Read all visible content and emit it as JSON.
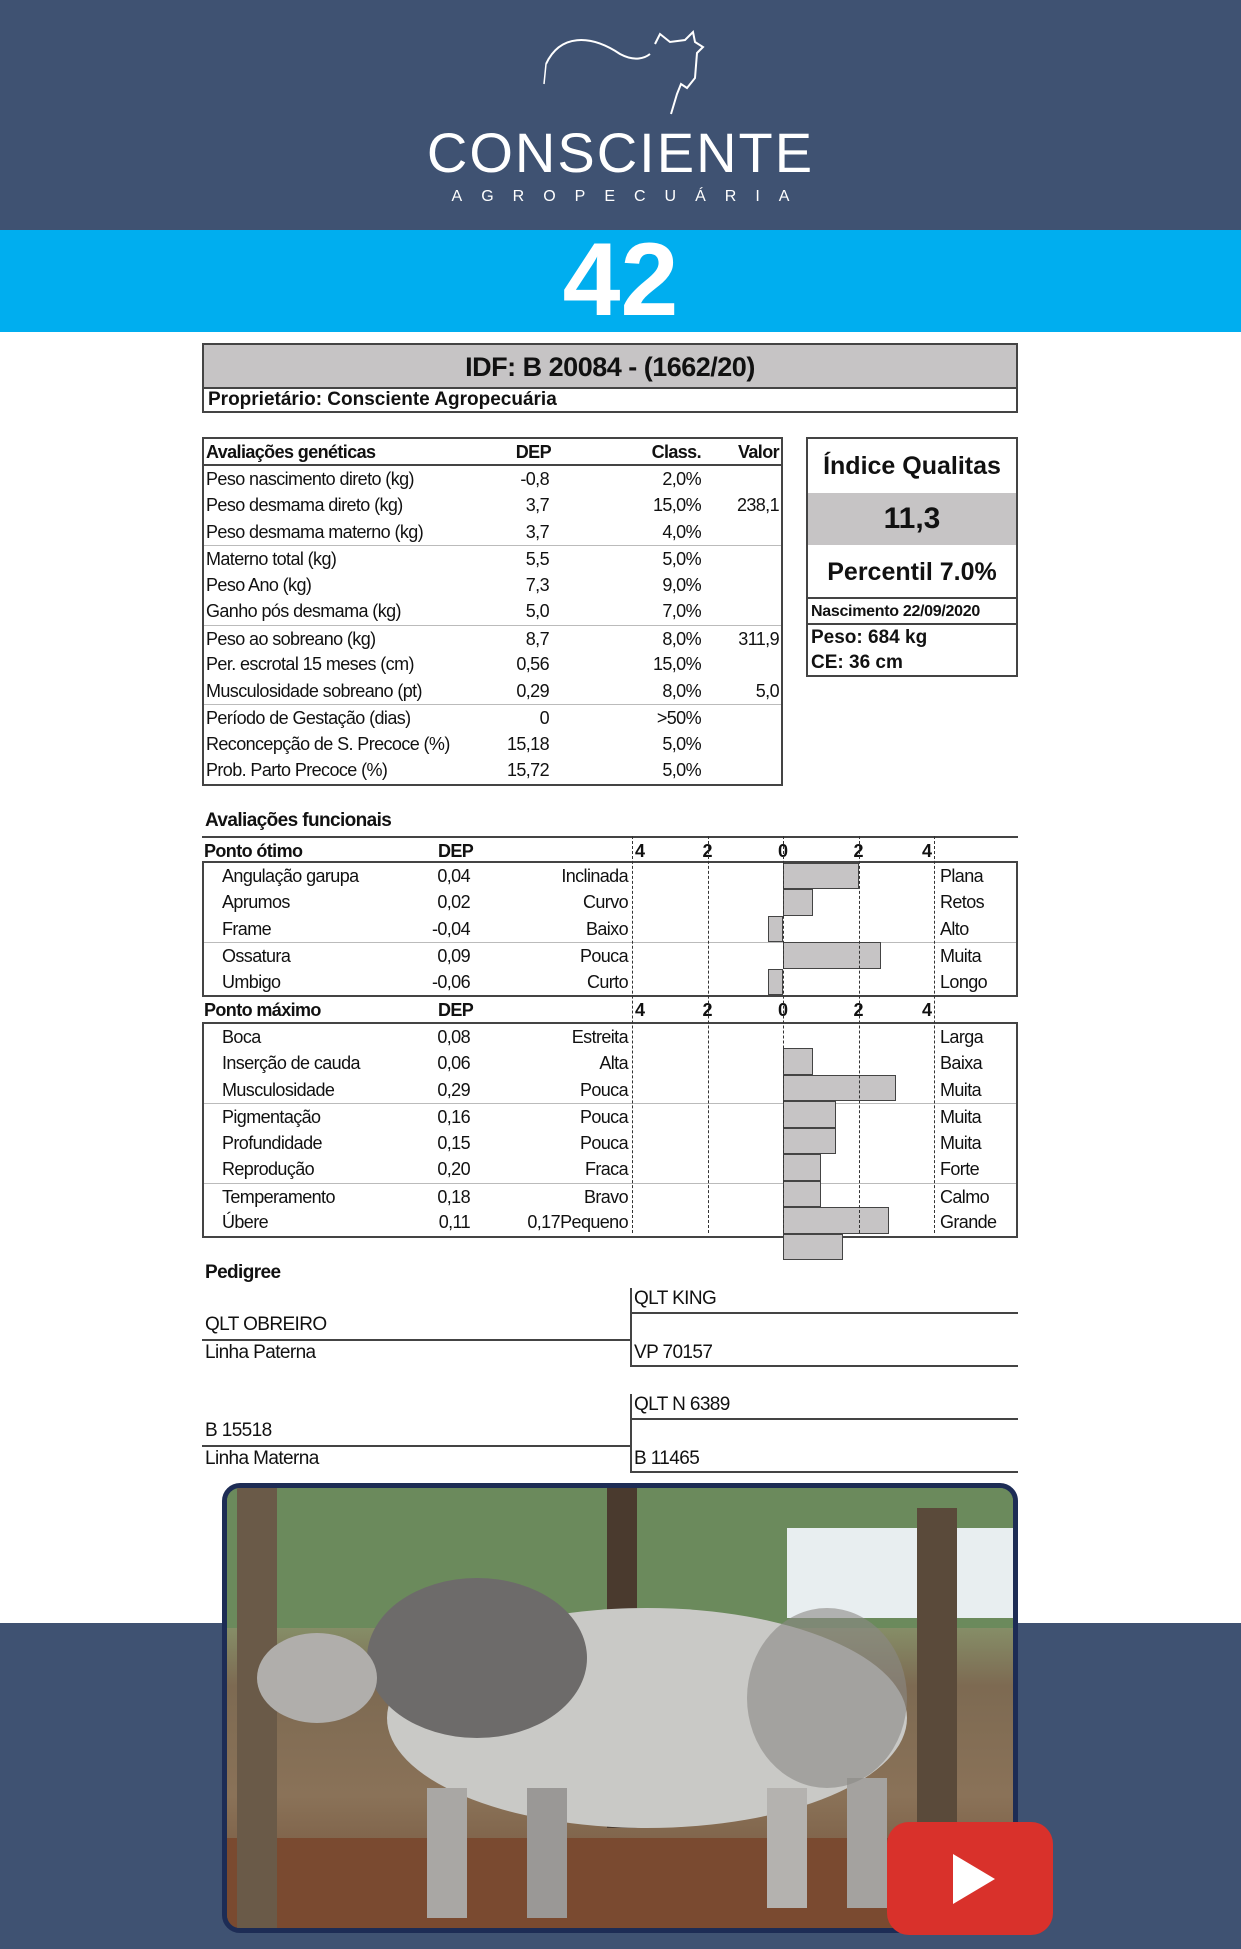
{
  "brand": {
    "name": "CONSCIENTE",
    "subtitle": "AGROPECUÁRIA"
  },
  "lot_number": "42",
  "animal": {
    "idf": "IDF: B 20084 - (1662/20)",
    "owner": "Proprietário: Consciente Agropecuária"
  },
  "genetic": {
    "headers": [
      "Avaliações genéticas",
      "DEP",
      "Class.",
      "Valor"
    ],
    "rows": [
      [
        "Peso nascimento direto (kg)",
        "-0,8",
        "2,0%",
        ""
      ],
      [
        "Peso desmama direto (kg)",
        "3,7",
        "15,0%",
        "238,1"
      ],
      [
        "Peso desmama materno (kg)",
        "3,7",
        "4,0%",
        ""
      ],
      [
        "Materno total (kg)",
        "5,5",
        "5,0%",
        ""
      ],
      [
        "Peso Ano (kg)",
        "7,3",
        "9,0%",
        ""
      ],
      [
        "Ganho pós desmama (kg)",
        "5,0",
        "7,0%",
        ""
      ],
      [
        "Peso ao sobreano (kg)",
        "8,7",
        "8,0%",
        "311,9"
      ],
      [
        "Per. escrotal 15 meses (cm)",
        "0,56",
        "15,0%",
        ""
      ],
      [
        "Musculosidade sobreano (pt)",
        "0,29",
        "8,0%",
        "5,0"
      ],
      [
        "Período de Gestação (dias)",
        "0",
        ">50%",
        ""
      ],
      [
        "Reconcepção de S. Precoce (%)",
        "15,18",
        "5,0%",
        ""
      ],
      [
        "Prob. Parto Precoce (%)",
        "15,72",
        "5,0%",
        ""
      ]
    ]
  },
  "qualitas": {
    "title": "Índice Qualitas",
    "value": "11,3",
    "percentile": "Percentil 7.0%",
    "birth": "Nascimento 22/09/2020",
    "weight": "Peso: 684 kg",
    "ce": "CE: 36 cm"
  },
  "functional": {
    "title": "Avaliações funcionais",
    "scale_ticks": [
      "4",
      "2",
      "0",
      "2",
      "4"
    ],
    "scale_range": [
      -4,
      4
    ],
    "bar_color": "#c6c4c5",
    "groups": [
      {
        "header": "Ponto ótimo",
        "dep_label": "DEP",
        "rows": [
          {
            "label": "Angulação garupa",
            "dep": "0,04",
            "extra": "",
            "low": "Inclinada",
            "high": "Plana",
            "bar": 2.0
          },
          {
            "label": "Aprumos",
            "dep": "0,02",
            "extra": "",
            "low": "Curvo",
            "high": "Retos",
            "bar": 0.8
          },
          {
            "label": "Frame",
            "dep": "-0,04",
            "extra": "",
            "low": "Baixo",
            "high": "Alto",
            "bar": -0.4
          },
          {
            "label": "Ossatura",
            "dep": "0,09",
            "extra": "",
            "low": "Pouca",
            "high": "Muita",
            "bar": 2.6
          },
          {
            "label": "Umbigo",
            "dep": "-0,06",
            "extra": "",
            "low": "Curto",
            "high": "Longo",
            "bar": -0.4
          }
        ]
      },
      {
        "header": "Ponto máximo",
        "dep_label": "DEP",
        "rows": [
          {
            "label": "Boca",
            "dep": "0,08",
            "extra": "",
            "low": "Estreita",
            "high": "Larga",
            "bar": 0.8
          },
          {
            "label": "Inserção de cauda",
            "dep": "0,06",
            "extra": "",
            "low": "Alta",
            "high": "Baixa",
            "bar": 3.0
          },
          {
            "label": "Musculosidade",
            "dep": "0,29",
            "extra": "",
            "low": "Pouca",
            "high": "Muita",
            "bar": 1.4
          },
          {
            "label": "Pigmentação",
            "dep": "0,16",
            "extra": "",
            "low": "Pouca",
            "high": "Muita",
            "bar": 1.4
          },
          {
            "label": "Profundidade",
            "dep": "0,15",
            "extra": "",
            "low": "Pouca",
            "high": "Muita",
            "bar": 1.0
          },
          {
            "label": "Reprodução",
            "dep": "0,20",
            "extra": "",
            "low": "Fraca",
            "high": "Forte",
            "bar": 1.0
          },
          {
            "label": "Temperamento",
            "dep": "0,18",
            "extra": "",
            "low": "Bravo",
            "high": "Calmo",
            "bar": 2.8
          },
          {
            "label": "Úbere",
            "dep": "0,11",
            "extra": "0,17",
            "low": "Pequeno",
            "high": "Grande",
            "bar": 1.6
          }
        ]
      }
    ]
  },
  "pedigree": {
    "title": "Pedigree",
    "sire": "QLT OBREIRO",
    "sire_label": "Linha Paterna",
    "sire_sire": "QLT KING",
    "sire_dam": "VP 70157",
    "dam": "B 15518",
    "dam_label": "Linha Materna",
    "dam_sire": "QLT N 6389",
    "dam_dam": "B 11465"
  },
  "video": {
    "icon": "play-icon",
    "button_color": "#d9312b"
  },
  "colors": {
    "header": "#3f5272",
    "band": "#00aeef"
  }
}
